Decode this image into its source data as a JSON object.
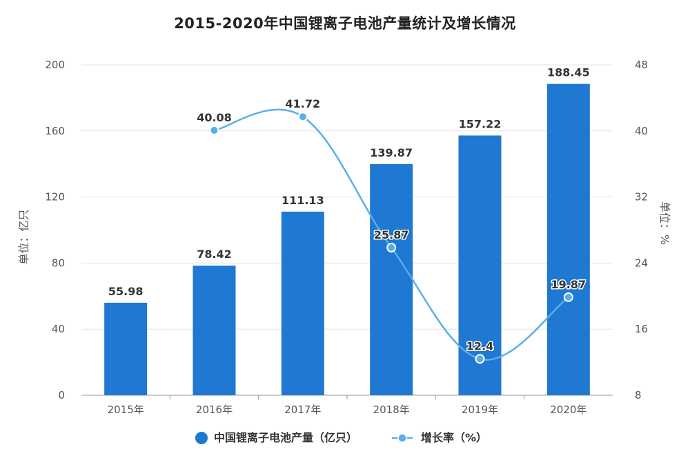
{
  "chart_data": {
    "type": "bar",
    "title": "2015-2020年中国锂离子电池产量统计及增长情况",
    "categories": [
      "2015年",
      "2016年",
      "2017年",
      "2018年",
      "2019年",
      "2020年"
    ],
    "series": [
      {
        "name": "中国锂离子电池产量（亿只）",
        "type": "bar",
        "axis": "left",
        "color": "#1f78d1",
        "values": [
          55.98,
          78.42,
          111.13,
          139.87,
          157.22,
          188.45
        ],
        "labels": [
          "55.98",
          "78.42",
          "111.13",
          "139.87",
          "157.22",
          "188.45"
        ]
      },
      {
        "name": "增长率（%）",
        "type": "line",
        "axis": "right",
        "color": "#5aaee8",
        "values": [
          null,
          40.08,
          41.72,
          25.87,
          12.4,
          19.87
        ],
        "labels": [
          "",
          "40.08",
          "41.72",
          "25.87",
          "12.4",
          "19.87"
        ]
      }
    ],
    "y_left": {
      "label": "单位：亿只",
      "ylim": [
        0,
        200
      ],
      "ticks": [
        0,
        40,
        80,
        120,
        160,
        200
      ],
      "tick_labels": [
        "0",
        "40",
        "80",
        "120",
        "160",
        "200"
      ]
    },
    "y_right": {
      "label": "单位：%",
      "ylim": [
        8,
        48
      ],
      "ticks": [
        8,
        16,
        24,
        32,
        40,
        48
      ],
      "tick_labels": [
        "8",
        "16",
        "24",
        "32",
        "40",
        "48"
      ]
    },
    "grid": true,
    "legend_position": "bottom-center"
  }
}
